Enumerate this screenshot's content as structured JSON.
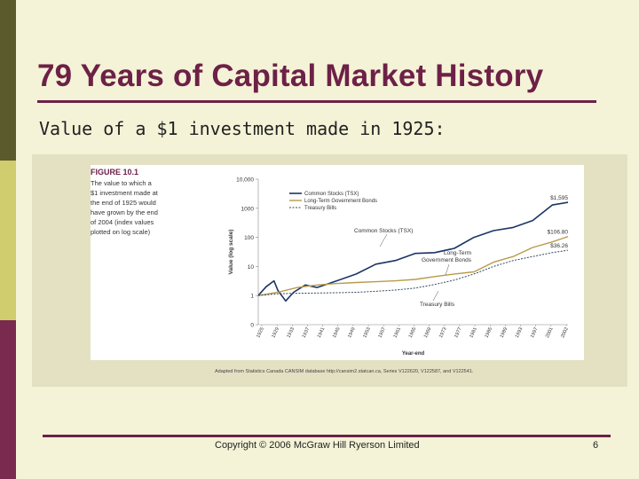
{
  "slide": {
    "title": "79 Years of Capital Market History",
    "subtitle": "Value of a $1 investment made in 1925:",
    "copyright": "Copyright © 2006 McGraw Hill Ryerson Limited",
    "page_number": "6"
  },
  "colors": {
    "title": "#6d2147",
    "stocks": "#1a3466",
    "bonds": "#b99a4a",
    "bills": "#33475e"
  },
  "figure": {
    "label": "FIGURE 10.1",
    "caption_lines": [
      "The value to which a",
      "$1 investment made at",
      "the end of 1925 would",
      "have grown by the end",
      "of 2004 (index values",
      "plotted on log scale)"
    ],
    "source": "Adapted from Statistics Canada CANSIM database http://cansim2.statcan.ca, Series V122620, V122587, and V122541."
  },
  "chart_data": {
    "type": "line",
    "scale": "log",
    "ylabel": "Value (log scale)",
    "xlabel": "Year-end",
    "ylim": [
      0.1,
      10000
    ],
    "y_ticks": [
      {
        "value": 0.1,
        "label": "0"
      },
      {
        "value": 1,
        "label": "1"
      },
      {
        "value": 10,
        "label": "10"
      },
      {
        "value": 100,
        "label": "100"
      },
      {
        "value": 1000,
        "label": "1000"
      },
      {
        "value": 10000,
        "label": "10,000"
      }
    ],
    "xlim": [
      1925,
      2004
    ],
    "x_ticks": [
      "1925",
      "1929",
      "1933",
      "1937",
      "1941",
      "1945",
      "1949",
      "1953",
      "1957",
      "1961",
      "1965",
      "1969",
      "1973",
      "1977",
      "1981",
      "1985",
      "1989",
      "1993",
      "1997",
      "2001",
      "2002"
    ],
    "legend": [
      "Common Stocks (TSX)",
      "Long-Term Government Bonds",
      "Treasury Bills"
    ],
    "legend_position": "top-left",
    "series": [
      {
        "name": "Common Stocks (TSX)",
        "end_label": "$1,595",
        "x": [
          1925,
          1927,
          1929,
          1930,
          1932,
          1934,
          1937,
          1940,
          1945,
          1950,
          1955,
          1960,
          1965,
          1970,
          1975,
          1980,
          1985,
          1990,
          1995,
          2000,
          2004
        ],
        "values": [
          1,
          2,
          3.2,
          1.5,
          0.65,
          1.3,
          2.3,
          1.9,
          3.2,
          5.5,
          12,
          16,
          28,
          30,
          42,
          100,
          170,
          220,
          380,
          1300,
          1595
        ]
      },
      {
        "name": "Long-Term Government Bonds",
        "end_label": "$106.80",
        "x": [
          1925,
          1930,
          1935,
          1940,
          1945,
          1950,
          1955,
          1960,
          1965,
          1970,
          1975,
          1980,
          1985,
          1990,
          1995,
          2000,
          2004
        ],
        "values": [
          1,
          1.3,
          1.9,
          2.3,
          2.6,
          2.8,
          3.0,
          3.2,
          3.6,
          4.5,
          5.5,
          6.5,
          14,
          22,
          45,
          70,
          106.8
        ]
      },
      {
        "name": "Treasury Bills",
        "end_label": "$36.26",
        "x": [
          1925,
          1930,
          1935,
          1940,
          1945,
          1950,
          1955,
          1960,
          1965,
          1970,
          1975,
          1980,
          1985,
          1990,
          1995,
          2000,
          2004
        ],
        "values": [
          1,
          1.15,
          1.2,
          1.22,
          1.25,
          1.3,
          1.4,
          1.55,
          1.8,
          2.4,
          3.4,
          5.5,
          10,
          16,
          22,
          30,
          36.26
        ]
      }
    ],
    "annotations": [
      {
        "text": "Common Stocks (TSX)",
        "series": "Common Stocks (TSX)"
      },
      {
        "text": "Long-Term",
        "series": "Long-Term Government Bonds"
      },
      {
        "text": "Government Bonds",
        "series": "Long-Term Government Bonds"
      },
      {
        "text": "Treasury Bills",
        "series": "Treasury Bills"
      }
    ]
  }
}
